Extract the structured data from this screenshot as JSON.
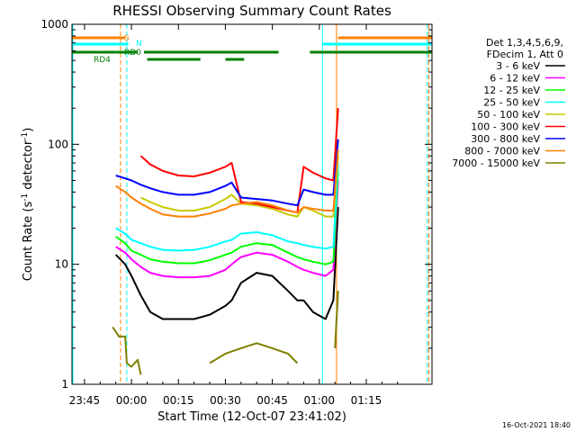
{
  "chart_data": {
    "type": "line",
    "title": "RHESSI Observing Summary Count Rates",
    "xlabel": "Start Time (12-Oct-07 23:41:02)",
    "ylabel_main": "Count Rate (s",
    "ylabel_sup1": "-1",
    "ylabel_mid": " detector",
    "ylabel_sup2": "-1",
    "ylabel_end": ")",
    "yscale": "log",
    "ylim": [
      1,
      1000
    ],
    "xlim_minutes": [
      -19,
      96
    ],
    "x_tick_labels": [
      {
        "label": "23:45",
        "t": -15
      },
      {
        "label": "00:00",
        "t": 0
      },
      {
        "label": "00:15",
        "t": 15
      },
      {
        "label": "00:30",
        "t": 30
      },
      {
        "label": "00:45",
        "t": 45
      },
      {
        "label": "01:00",
        "t": 60
      },
      {
        "label": "01:15",
        "t": 75
      }
    ],
    "y_tick_labels": [
      {
        "label": "1",
        "v": 1
      },
      {
        "label": "10",
        "v": 10
      },
      {
        "label": "100",
        "v": 100
      },
      {
        "label": "1000",
        "v": 1000
      }
    ],
    "legend_header": [
      "Det 1,3,4,5,6,9,",
      "FDecim 1, Att 0"
    ],
    "legend_position": "right",
    "series": [
      {
        "name": "3 - 6 keV",
        "color": "#000000",
        "x": [
          -5.0,
          -2.0,
          0.0,
          3.0,
          6.0,
          10.0,
          15.0,
          20.0,
          25.0,
          30.0,
          32.0,
          35.0,
          40.0,
          45.0,
          50.0,
          53.0,
          55.0,
          58.0,
          62.0,
          64.5,
          66.0
        ],
        "y": [
          12.0,
          10.0,
          8.0,
          5.5,
          4.0,
          3.5,
          3.5,
          3.5,
          3.8,
          4.5,
          5.0,
          7.0,
          8.5,
          8.0,
          6.0,
          5.0,
          5.0,
          4.0,
          3.5,
          5.0,
          30.0
        ]
      },
      {
        "name": "6 - 12 keV",
        "color": "#ff00ff",
        "x": [
          -5.0,
          -2.0,
          0.0,
          3.0,
          6.0,
          10.0,
          15.0,
          20.0,
          25.0,
          30.0,
          32.0,
          35.0,
          40.0,
          45.0,
          50.0,
          53.0,
          55.0,
          58.0,
          62.0,
          64.5,
          66.0
        ],
        "y": [
          14.0,
          12.5,
          11.0,
          9.5,
          8.5,
          8.0,
          7.8,
          7.8,
          8.0,
          9.0,
          10.0,
          11.5,
          12.5,
          12.0,
          10.5,
          9.5,
          9.0,
          8.5,
          8.0,
          9.0,
          50.0
        ]
      },
      {
        "name": "12 - 25 keV",
        "color": "#00ff00",
        "x": [
          -5.0,
          -2.0,
          0.0,
          3.0,
          6.0,
          10.0,
          15.0,
          20.0,
          25.0,
          30.0,
          32.0,
          35.0,
          40.0,
          45.0,
          50.0,
          53.0,
          55.0,
          58.0,
          62.0,
          64.5,
          66.0
        ],
        "y": [
          17.0,
          15.0,
          13.0,
          12.0,
          11.0,
          10.5,
          10.2,
          10.2,
          10.8,
          12.0,
          12.5,
          14.0,
          15.0,
          14.5,
          12.5,
          11.5,
          11.0,
          10.5,
          10.0,
          10.5,
          60.0
        ]
      },
      {
        "name": "25 - 50 keV",
        "color": "#00ffff",
        "x": [
          -5.0,
          -2.0,
          0.0,
          3.0,
          6.0,
          10.0,
          15.0,
          20.0,
          25.0,
          30.0,
          32.0,
          35.0,
          40.0,
          45.0,
          50.0,
          53.0,
          55.0,
          58.0,
          62.0,
          64.5,
          66.0
        ],
        "y": [
          20.0,
          18.0,
          16.0,
          15.0,
          14.0,
          13.2,
          13.0,
          13.2,
          14.0,
          15.5,
          16.0,
          18.0,
          18.5,
          17.5,
          15.5,
          15.0,
          14.5,
          14.0,
          13.5,
          14.0,
          70.0
        ]
      },
      {
        "name": "50 - 100 keV",
        "color": "#c8c800",
        "x": [
          -5.0,
          -2.0,
          0.0,
          3.0,
          6.0,
          10.0,
          15.0,
          20.0,
          25.0,
          30.0,
          32.0,
          35.0,
          40.0,
          45.0,
          50.0,
          53.0,
          55.0,
          58.0,
          62.0,
          64.5,
          66.0
        ],
        "y": [
          null,
          null,
          null,
          36.0,
          33.0,
          30.0,
          28.0,
          28.0,
          30.0,
          35.0,
          38.0,
          32.0,
          31.0,
          29.0,
          26.0,
          25.0,
          30.0,
          28.0,
          25.0,
          25.0,
          80.0
        ]
      },
      {
        "name": "100 - 300 keV",
        "color": "#ff0000",
        "x": [
          -5.0,
          -2.0,
          0.0,
          3.0,
          6.0,
          10.0,
          15.0,
          20.0,
          25.0,
          30.0,
          32.0,
          35.0,
          40.0,
          45.0,
          50.0,
          53.0,
          55.0,
          58.0,
          62.0,
          64.5,
          66.0
        ],
        "y": [
          null,
          null,
          null,
          80.0,
          68.0,
          60.0,
          55.0,
          54.0,
          58.0,
          65.0,
          70.0,
          33.0,
          32.0,
          30.0,
          28.0,
          27.0,
          65.0,
          58.0,
          52.0,
          50.0,
          200.0
        ]
      },
      {
        "name": "300 - 800 keV",
        "color": "#0000ff",
        "x": [
          -5.0,
          -2.0,
          0.0,
          3.0,
          6.0,
          10.0,
          15.0,
          20.0,
          25.0,
          30.0,
          32.0,
          35.0,
          40.0,
          45.0,
          50.0,
          53.0,
          55.0,
          58.0,
          62.0,
          64.5,
          66.0
        ],
        "y": [
          55.0,
          52.0,
          50.0,
          46.0,
          43.0,
          40.0,
          38.0,
          38.0,
          40.0,
          45.0,
          48.0,
          36.0,
          35.0,
          34.0,
          32.0,
          31.0,
          42.0,
          40.0,
          38.0,
          38.0,
          110.0
        ]
      },
      {
        "name": "800 - 7000 keV",
        "color": "#ff8000",
        "x": [
          -5.0,
          -2.0,
          0.0,
          3.0,
          6.0,
          10.0,
          15.0,
          20.0,
          25.0,
          30.0,
          32.0,
          35.0,
          40.0,
          45.0,
          50.0,
          53.0,
          55.0,
          58.0,
          62.0,
          64.5,
          66.0
        ],
        "y": [
          45.0,
          40.0,
          36.0,
          32.0,
          29.0,
          26.0,
          25.0,
          25.0,
          26.5,
          29.0,
          31.0,
          32.0,
          33.0,
          31.0,
          28.0,
          27.0,
          30.0,
          29.0,
          28.0,
          28.0,
          90.0
        ]
      },
      {
        "name": "7000 - 15000 keV",
        "color": "#808000",
        "x": [
          -6.0,
          -4.0,
          -2.0,
          -1.5,
          0.0,
          2.0,
          3.0,
          4.0,
          24.0,
          25.0,
          30.0,
          35.0,
          40.0,
          45.0,
          50.0,
          53.0,
          54.0,
          64.0,
          65.0,
          66.0
        ],
        "y": [
          3.0,
          2.5,
          2.5,
          1.5,
          1.4,
          1.6,
          1.2,
          null,
          null,
          1.5,
          1.8,
          2.0,
          2.2,
          2.0,
          1.8,
          1.5,
          null,
          null,
          2.0,
          6.0
        ]
      }
    ],
    "state_bars": [
      {
        "label": "RD4",
        "color": "#008000",
        "level": 5,
        "segments": [
          [
            -19,
            -5
          ],
          [
            -5,
            2
          ],
          [
            4,
            30
          ],
          [
            30,
            47
          ],
          [
            57,
            96
          ]
        ]
      },
      {
        "label": "RD0",
        "color": "#008000",
        "level": 4,
        "segments": [
          [
            5,
            22
          ],
          [
            30,
            36
          ]
        ]
      },
      {
        "label": "S",
        "color": "#ff8000",
        "level": 1,
        "segments": [
          [
            -19,
            -2
          ],
          [
            66,
            96
          ]
        ]
      },
      {
        "label": "N",
        "color": "#00ffff",
        "level": 2,
        "segments": [
          [
            -19,
            -1
          ],
          [
            61,
            96
          ]
        ]
      }
    ],
    "vertical_markers": [
      {
        "t": -19,
        "color": "#00ffff",
        "style": "solid"
      },
      {
        "t": -3.5,
        "color": "#ff8000",
        "style": "dashed"
      },
      {
        "t": -1.5,
        "color": "#00ffff",
        "style": "dashed"
      },
      {
        "t": 61,
        "color": "#00ffff",
        "style": "solid"
      },
      {
        "t": 65.5,
        "color": "#ff8000",
        "style": "solid"
      },
      {
        "t": 94.5,
        "color": "#00ffff",
        "style": "dashed"
      },
      {
        "t": 95,
        "color": "#ff8000",
        "style": "dashed"
      }
    ],
    "grid": false
  },
  "footer": {
    "timestamp": "16-Oct-2021 18:40"
  }
}
